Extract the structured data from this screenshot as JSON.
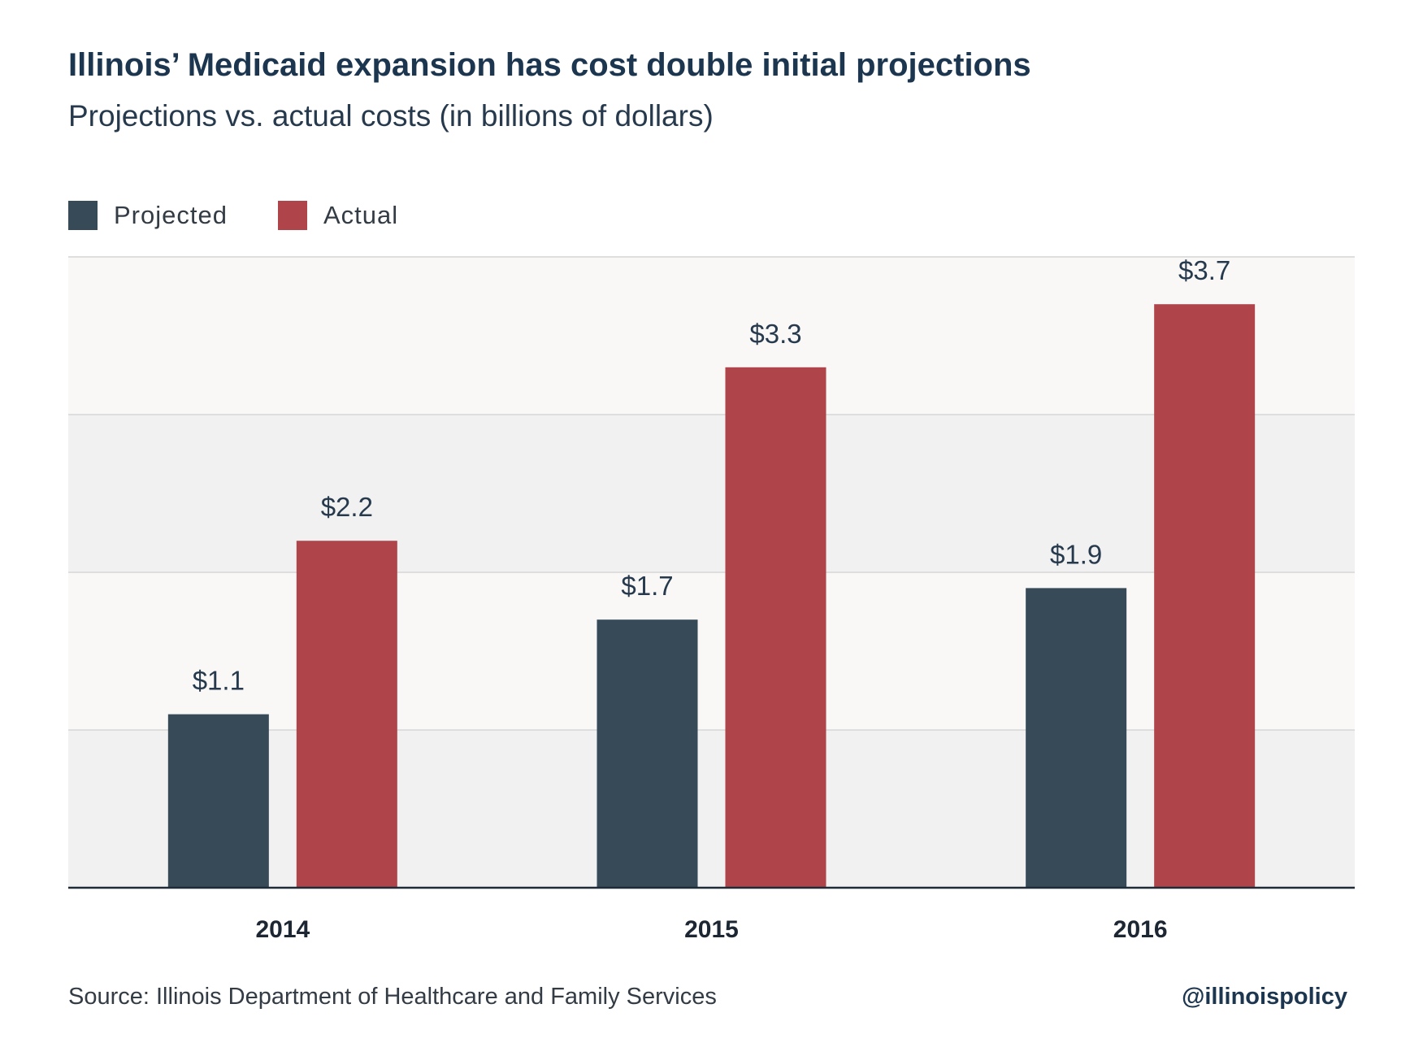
{
  "title": "Illinois’ Medicaid expansion has cost double initial projections",
  "subtitle": "Projections vs. actual costs (in billions of dollars)",
  "legend": [
    {
      "label": "Projected",
      "color": "#364a58"
    },
    {
      "label": "Actual",
      "color": "#b0444b"
    }
  ],
  "source": "Source: Illinois Department of Healthcare and Family Services",
  "handle": "@illinoispolicy",
  "chart_data": {
    "type": "bar",
    "categories": [
      "2014",
      "2015",
      "2016"
    ],
    "series": [
      {
        "name": "Projected",
        "values": [
          1.1,
          1.7,
          1.9
        ],
        "labels": [
          "$1.1",
          "$1.7",
          "$1.9"
        ],
        "color": "#364a58"
      },
      {
        "name": "Actual",
        "values": [
          2.2,
          3.3,
          3.7
        ],
        "labels": [
          "$2.2",
          "$3.3",
          "$3.7"
        ],
        "color": "#b0444b"
      }
    ],
    "title": "Illinois’ Medicaid expansion has cost double initial projections",
    "subtitle": "Projections vs. actual costs (in billions of dollars)",
    "xlabel": "",
    "ylabel": "",
    "ylim": [
      0,
      4
    ],
    "grid": true,
    "legend_position": "top-left",
    "y_tick_labels_shown": false
  }
}
